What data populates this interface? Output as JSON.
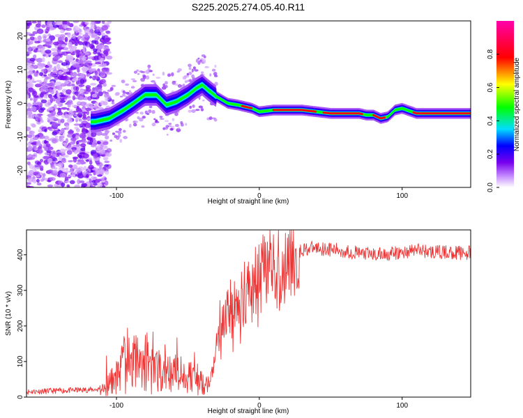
{
  "title": "S225.2025.274.05.40.R11",
  "chart_data": [
    {
      "type": "heatmap",
      "xlabel": "Height of straight line (km)",
      "ylabel": "Frequency (Hz)",
      "xlim": [
        -163,
        148
      ],
      "ylim": [
        -25,
        24.5
      ],
      "xticks": [
        -100,
        0,
        100
      ],
      "yticks": [
        -20,
        -10,
        0,
        10,
        20
      ],
      "ridge": {
        "x": [
          -115,
          -105,
          -95,
          -88,
          -80,
          -72,
          -65,
          -58,
          -50,
          -44,
          -40,
          -36,
          -30,
          -22,
          -15,
          -10,
          -5,
          0,
          10,
          20,
          30,
          40,
          50,
          60,
          70,
          75,
          80,
          85,
          90,
          95,
          100,
          110,
          120,
          130,
          140,
          148
        ],
        "y": [
          -5.5,
          -4.5,
          -2,
          0,
          2.5,
          2.5,
          -0.5,
          0.5,
          2.5,
          4.5,
          5.5,
          4,
          2,
          0,
          -0.5,
          -1,
          -1.5,
          -2.5,
          -2,
          -2,
          -2,
          -2.5,
          -3,
          -3,
          -3,
          -3.5,
          -3.5,
          -4.5,
          -4,
          -2,
          -1.5,
          -3,
          -3,
          -3,
          -3,
          -3
        ]
      },
      "colorbar": {
        "label": "Normalized spectral amplitude",
        "ticks": [
          "0.0",
          "0.2",
          "0.4",
          "0.6",
          "0.8"
        ],
        "range": [
          0,
          1
        ]
      }
    },
    {
      "type": "line",
      "xlabel": "Height of straight line (km)",
      "ylabel": "SNR (10 * v/v)",
      "xlim": [
        -163,
        148
      ],
      "ylim": [
        0,
        470
      ],
      "xticks": [
        -100,
        0,
        100
      ],
      "yticks": [
        0,
        100,
        200,
        300,
        400
      ],
      "color": "#ee3333",
      "envelope": {
        "x": [
          -163,
          -110,
          -105,
          -100,
          -95,
          -90,
          -85,
          -80,
          -70,
          -60,
          -50,
          -40,
          -35,
          -32,
          -30,
          -28,
          -25,
          -20,
          -15,
          -10,
          -5,
          0,
          5,
          10,
          15,
          20,
          25,
          30,
          40,
          60,
          80,
          100,
          110,
          120,
          148
        ],
        "y": [
          15,
          22,
          35,
          60,
          90,
          100,
          90,
          80,
          70,
          65,
          60,
          45,
          30,
          90,
          140,
          200,
          230,
          250,
          270,
          300,
          310,
          330,
          350,
          360,
          370,
          390,
          400,
          415,
          420,
          410,
          400,
          405,
          415,
          408,
          405
        ]
      }
    }
  ]
}
